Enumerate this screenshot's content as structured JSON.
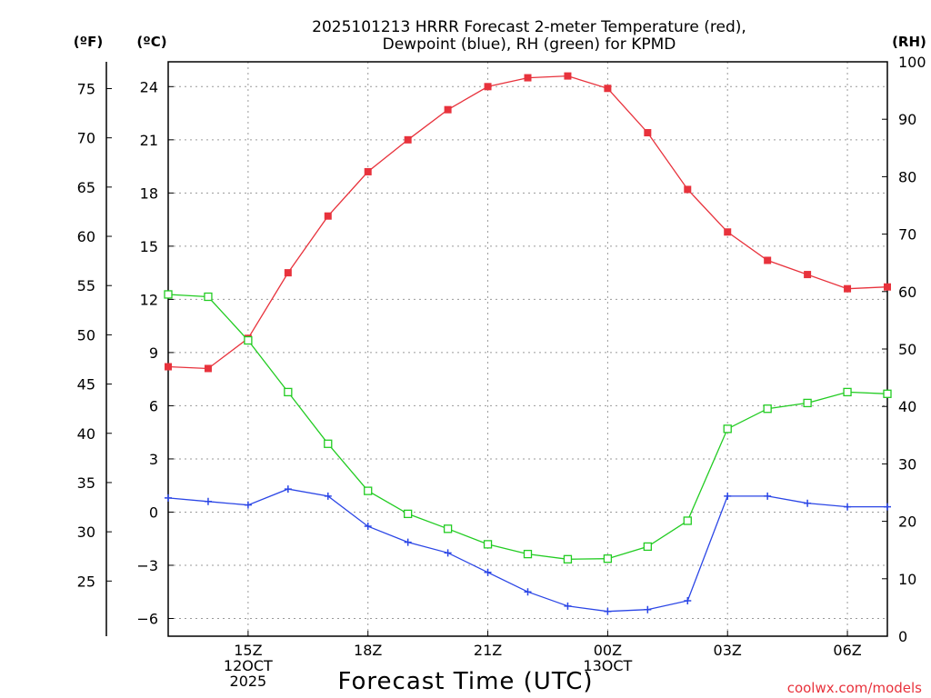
{
  "chart_data": {
    "type": "line",
    "title_line1": "2025101213 HRRR Forecast 2-meter Temperature (red),",
    "title_line2": "Dewpoint (blue), RH (green) for KPMD",
    "xlabel": "Forecast Time (UTC)",
    "units": {
      "fahrenheit": "(ºF)",
      "celsius": "(ºC)",
      "rh": "(RH)"
    },
    "x_range": [
      13,
      31
    ],
    "celsius_range": [
      -7,
      25.4
    ],
    "rh_range": [
      0,
      100
    ],
    "x_ticks": [
      {
        "x": 15,
        "lines": [
          "15Z",
          "12OCT",
          "2025"
        ]
      },
      {
        "x": 18,
        "lines": [
          "18Z"
        ]
      },
      {
        "x": 21,
        "lines": [
          "21Z"
        ]
      },
      {
        "x": 24,
        "lines": [
          "00Z",
          "13OCT"
        ]
      },
      {
        "x": 27,
        "lines": [
          "03Z"
        ]
      },
      {
        "x": 30,
        "lines": [
          "06Z"
        ]
      }
    ],
    "celsius_ticks": [
      24,
      21,
      18,
      15,
      12,
      9,
      6,
      3,
      0,
      -3,
      -6
    ],
    "celsius_tick_labels": [
      "24",
      "21",
      "18",
      "15",
      "12",
      "9",
      "6",
      "3",
      "0",
      "−3",
      "−6"
    ],
    "fahrenheit_ticks": [
      75,
      70,
      65,
      60,
      55,
      50,
      45,
      40,
      35,
      30,
      25
    ],
    "rh_ticks": [
      100,
      90,
      80,
      70,
      60,
      50,
      40,
      30,
      20,
      10,
      0
    ],
    "x": [
      13,
      14,
      15,
      16,
      17,
      18,
      19,
      20,
      21,
      22,
      23,
      24,
      25,
      26,
      27,
      28,
      29,
      30,
      31
    ],
    "series": [
      {
        "name": "Temperature (red)",
        "color": "#e8323c",
        "marker": "filled-square",
        "axis": "celsius",
        "values": [
          8.2,
          8.1,
          9.8,
          13.5,
          16.7,
          19.2,
          21.0,
          22.7,
          24.0,
          24.5,
          24.6,
          23.9,
          21.4,
          18.2,
          15.8,
          14.2,
          13.4,
          12.6,
          12.7
        ]
      },
      {
        "name": "Dewpoint (blue)",
        "color": "#2b46e6",
        "marker": "plus",
        "axis": "celsius",
        "values": [
          0.8,
          0.6,
          0.4,
          1.3,
          0.9,
          -0.8,
          -1.7,
          -2.3,
          -3.4,
          -4.5,
          -5.3,
          -5.6,
          -5.5,
          -5.0,
          0.9,
          0.9,
          0.5,
          0.3,
          0.3
        ]
      },
      {
        "name": "RH (green)",
        "color": "#22cc22",
        "marker": "open-square",
        "axis": "rh",
        "values": [
          59.5,
          59.1,
          51.5,
          42.5,
          33.5,
          25.3,
          21.3,
          18.7,
          16.0,
          14.3,
          13.4,
          13.5,
          15.6,
          20.1,
          36.1,
          39.6,
          40.6,
          42.5,
          42.2
        ]
      }
    ]
  },
  "footer": {
    "credit": "coolwx.com/models"
  }
}
